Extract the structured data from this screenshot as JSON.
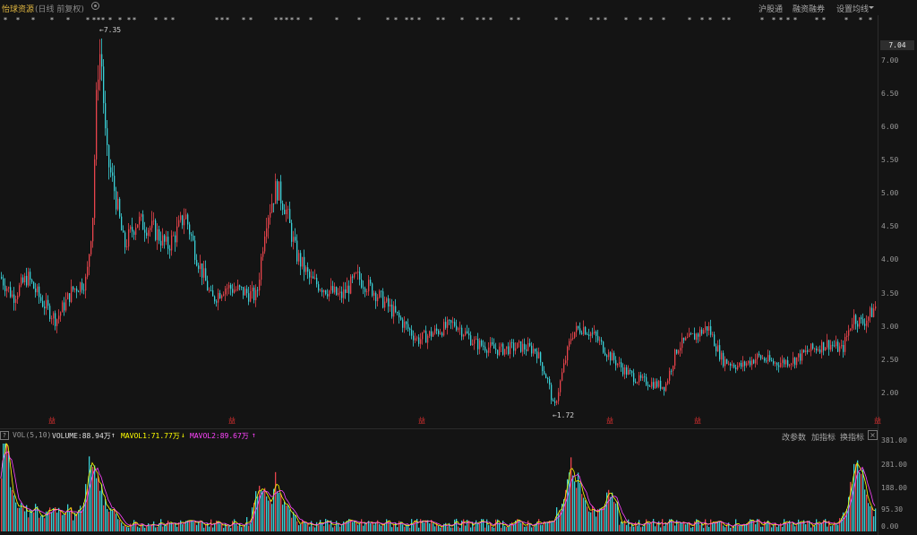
{
  "header": {
    "stock_name": "怡球资源",
    "mode": "(日线 前复权)",
    "buttons": [
      "沪股通",
      "融资融券",
      "设置均线"
    ]
  },
  "price_axis": {
    "current_price": "7.04",
    "ticks": [
      "7.00",
      "6.50",
      "6.00",
      "5.50",
      "5.00",
      "4.50",
      "4.00",
      "3.50",
      "3.00",
      "2.50",
      "2.00"
    ],
    "range": [
      1.62,
      7.55
    ]
  },
  "annotations": {
    "high": "7.35",
    "low": "1.72"
  },
  "volume": {
    "indicator": "VOL(5,10)",
    "volume_label": "VOLUME:88.94万",
    "mavol1_label": "MAVOL1:71.77万",
    "mavol2_label": "MAVOL2:89.67万",
    "buttons": [
      "改参数",
      "加指标",
      "换指标"
    ],
    "ticks": [
      "381.00",
      "281.00",
      "188.00",
      "95.30",
      "0.00"
    ]
  },
  "event_marks": {
    "symbol": "益",
    "count": 6
  },
  "colors": {
    "up": "#e8444c",
    "down": "#3ad1d8",
    "title": "#e0b640",
    "mavol1": "#ffff00",
    "mavol2": "#ff44ff"
  }
}
